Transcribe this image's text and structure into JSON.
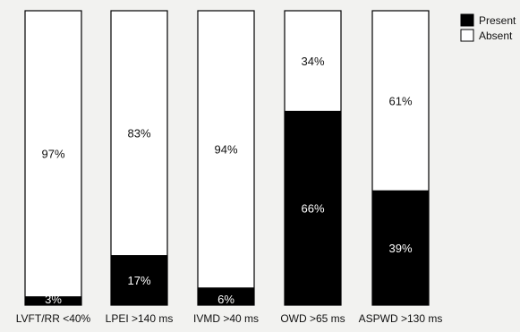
{
  "chart_data": {
    "type": "bar",
    "stacked": true,
    "normalized_percent": true,
    "categories": [
      "LVFT/RR <40%",
      "LPEI >140 ms",
      "IVMD >40 ms",
      "OWD >65 ms",
      "ASPWD >130 ms"
    ],
    "series": [
      {
        "name": "Present",
        "values": [
          3,
          17,
          6,
          66,
          39
        ],
        "labels": [
          "3%",
          "17%",
          "6%",
          "66%",
          "39%"
        ],
        "color": "#000000",
        "label_color": "#ffffff"
      },
      {
        "name": "Absent",
        "values": [
          97,
          83,
          94,
          34,
          61
        ],
        "labels": [
          "97%",
          "83%",
          "94%",
          "34%",
          "61%"
        ],
        "color": "#ffffff",
        "label_color": "#111111"
      }
    ],
    "ylim": [
      0,
      100
    ],
    "grid": false,
    "legend_position": "top-right",
    "title": "",
    "xlabel": "",
    "ylabel": ""
  }
}
